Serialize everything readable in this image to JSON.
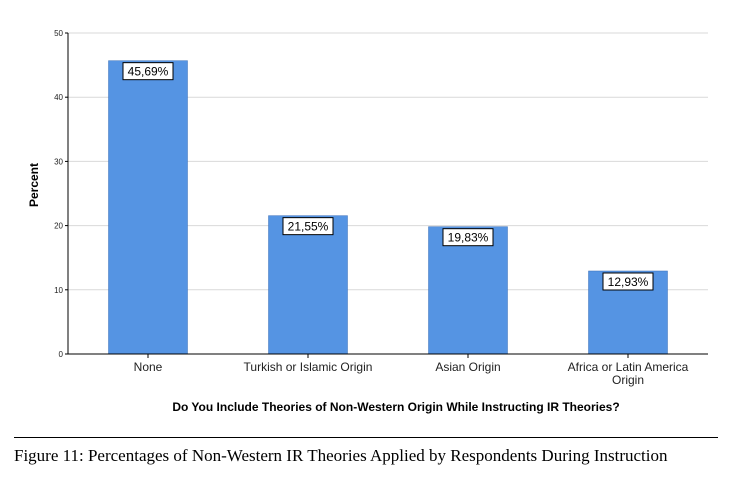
{
  "chart_data": {
    "type": "bar",
    "categories": [
      "None",
      "Turkish or Islamic Origin",
      "Asian Origin",
      "Africa or Latin America Origin"
    ],
    "category_lines": [
      [
        "None"
      ],
      [
        "Turkish or Islamic Origin"
      ],
      [
        "Asian Origin"
      ],
      [
        "Africa or Latin America",
        "Origin"
      ]
    ],
    "values": [
      45.69,
      21.55,
      19.83,
      12.93
    ],
    "data_labels": [
      "45,69%",
      "21,55%",
      "19,83%",
      "12,93%"
    ],
    "title": "",
    "xlabel": "Do You Include Theories of Non-Western Origin While Instructing IR Theories?",
    "ylabel": "Percent",
    "ylim": [
      0,
      50
    ],
    "yticks": [
      0,
      10,
      20,
      30,
      40,
      50
    ],
    "ytick_labels": [
      "0",
      "10",
      "20",
      "30",
      "40",
      "50"
    ],
    "grid": true,
    "legend": "none",
    "bar_color": "#5594e3",
    "grid_color": "#d9d9d9"
  },
  "caption": "Figure 11: Percentages of Non-Western IR Theories Applied by Respondents During Instruction"
}
